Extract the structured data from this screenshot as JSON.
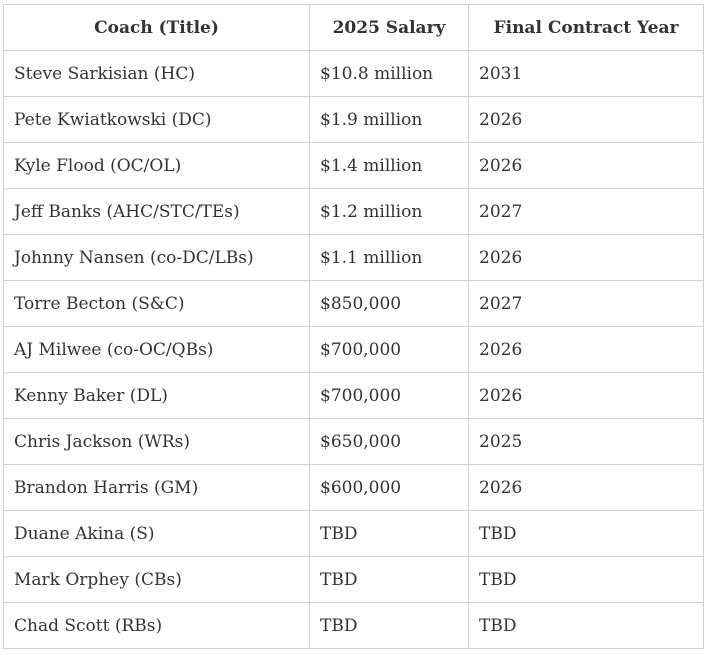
{
  "table": {
    "headers": [
      "Coach (Title)",
      "2025 Salary",
      "Final Contract Year"
    ],
    "rows": [
      [
        "Steve Sarkisian (HC)",
        "$10.8 million",
        "2031"
      ],
      [
        "Pete Kwiatkowski (DC)",
        "$1.9 million",
        "2026"
      ],
      [
        "Kyle Flood (OC/OL)",
        "$1.4 million",
        "2026"
      ],
      [
        "Jeff Banks (AHC/STC/TEs)",
        "$1.2 million",
        "2027"
      ],
      [
        "Johnny Nansen (co-DC/LBs)",
        "$1.1 million",
        "2026"
      ],
      [
        "Torre Becton (S&C)",
        "$850,000",
        "2027"
      ],
      [
        "AJ Milwee (co-OC/QBs)",
        "$700,000",
        "2026"
      ],
      [
        "Kenny Baker (DL)",
        "$700,000",
        "2026"
      ],
      [
        "Chris Jackson (WRs)",
        "$650,000",
        "2025"
      ],
      [
        "Brandon Harris (GM)",
        "$600,000",
        "2026"
      ],
      [
        "Duane Akina (S)",
        "TBD",
        "TBD"
      ],
      [
        "Mark Orphey (CBs)",
        "TBD",
        "TBD"
      ],
      [
        "Chad Scott (RBs)",
        "TBD",
        "TBD"
      ]
    ]
  }
}
